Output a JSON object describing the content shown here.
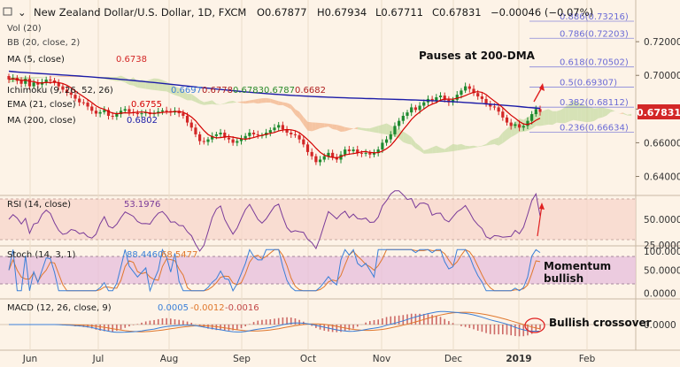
{
  "header": {
    "symbol": "New Zealand Dollar/U.S. Dollar, 1D, FXCM",
    "open": "O0.67877",
    "high": "H0.67934",
    "low": "L0.67711",
    "close": "C0.67831",
    "change": "−0.00046 (−0.07%)"
  },
  "indicators": {
    "vol": "Vol (20)",
    "bb": "BB (20, close, 2)",
    "ma5": "MA (5, close)",
    "ma5_value": "0.6738",
    "ichimoku": "Ichimoku (9, 26, 52, 26)",
    "ichimoku_values": [
      "0.6697",
      "0.6778",
      "0.6783",
      "0.6787",
      "0.6682"
    ],
    "ema21": "EMA (21, close)",
    "ema21_value": "0.6755",
    "ma200": "MA (200, close)",
    "ma200_value": "0.6802"
  },
  "fib_levels": [
    {
      "label": "0.886(0.73216)",
      "value": 0.73216
    },
    {
      "label": "0.786(0.72203)",
      "value": 0.72203
    },
    {
      "label": "0.618(0.70502)",
      "value": 0.70502
    },
    {
      "label": "0.5(0.69307)",
      "value": 0.69307
    },
    {
      "label": "0.382(0.68112)",
      "value": 0.68112
    },
    {
      "label": "0.236(0.66634)",
      "value": 0.66634
    }
  ],
  "annotations": {
    "main": "Pauses at 200-DMA",
    "stoch": "Momentum bullish",
    "stoch_line1": "Momentum",
    "stoch_line2": "bullish",
    "macd": "Bullish crossover"
  },
  "price_tag": "0.67831",
  "rsi": {
    "label": "RSI (14, close)",
    "value": "53.1976"
  },
  "stoch": {
    "label": "Stoch (14, 3, 1)",
    "k": "88.4460",
    "d": "68.5477"
  },
  "macd": {
    "label": "MACD (12, 26, close, 9)",
    "v1": "0.0005",
    "v2": "-0.0012",
    "v3": "-0.0016"
  },
  "colors": {
    "background": "#fdf3e7",
    "bull_candle": "#1e8a2f",
    "bear_candle": "#d32727",
    "ma200": "#1c1ca8",
    "ema21": "#d40000",
    "cloud_bear": "#f2b48b",
    "cloud_bull": "#c8dca6",
    "fib": "#6b6bd6",
    "rsi": "#7a3b99",
    "rsi_band": "#f7d3c9",
    "stoch_band": "#e6bddc",
    "stoch_k": "#3a7fd8",
    "stoch_d": "#e0782d",
    "macd_line": "#3a7fd8",
    "macd_signal": "#e0782d",
    "macd_hist": "#c24848",
    "price_tag": "#d32727",
    "arrow": "#e02020"
  },
  "chart_data": [
    {
      "type": "candlestick",
      "title": "New Zealand Dollar/U.S. Dollar, 1D, FXCM",
      "y_ticks": [
        0.72,
        0.7,
        0.68,
        0.66,
        0.64
      ],
      "y_tick_labels": [
        "0.72000",
        "0.70000",
        "0.68000",
        "0.66000",
        "0.64000"
      ],
      "ylim": [
        0.6345,
        0.7395
      ],
      "x_ticks": [
        "Jun",
        "Jul",
        "Aug",
        "Sep",
        "Oct",
        "Nov",
        "Dec",
        "2019",
        "Feb"
      ],
      "last_price": 0.67831,
      "series": [
        {
          "name": "Close",
          "values": [
            0.6976,
            0.6985,
            0.6968,
            0.695,
            0.698,
            0.6935,
            0.6958,
            0.6945,
            0.696,
            0.6975,
            0.697,
            0.6955,
            0.6935,
            0.6915,
            0.6898,
            0.6885,
            0.6862,
            0.684,
            0.6838,
            0.6815,
            0.679,
            0.6773,
            0.6782,
            0.6795,
            0.676,
            0.6755,
            0.677,
            0.679,
            0.68,
            0.6782,
            0.6776,
            0.677,
            0.6775,
            0.678,
            0.677,
            0.6778,
            0.6785,
            0.6792,
            0.6788,
            0.678,
            0.679,
            0.6775,
            0.676,
            0.672,
            0.669,
            0.665,
            0.661,
            0.6605,
            0.662,
            0.664,
            0.665,
            0.666,
            0.663,
            0.662,
            0.66,
            0.661,
            0.6625,
            0.664,
            0.666,
            0.665,
            0.6645,
            0.6645,
            0.666,
            0.6675,
            0.669,
            0.6705,
            0.668,
            0.666,
            0.665,
            0.6645,
            0.662,
            0.659,
            0.6545,
            0.652,
            0.6485,
            0.65,
            0.652,
            0.654,
            0.6515,
            0.65,
            0.653,
            0.656,
            0.655,
            0.656,
            0.654,
            0.6535,
            0.654,
            0.653,
            0.654,
            0.656,
            0.66,
            0.662,
            0.665,
            0.67,
            0.673,
            0.676,
            0.678,
            0.681,
            0.6795,
            0.682,
            0.684,
            0.686,
            0.685,
            0.687,
            0.688,
            0.6855,
            0.684,
            0.6855,
            0.6885,
            0.691,
            0.6935,
            0.692,
            0.6895,
            0.6875,
            0.686,
            0.683,
            0.6815,
            0.681,
            0.6785,
            0.675,
            0.672,
            0.67,
            0.671,
            0.669,
            0.67,
            0.673,
            0.677,
            0.68,
            0.6783
          ]
        }
      ]
    },
    {
      "type": "line",
      "title": "RSI (14, close)",
      "y_ticks": [
        50,
        25
      ],
      "y_tick_labels": [
        "50.0000",
        "25.0000"
      ],
      "bands": [
        30,
        70
      ],
      "last_value": 53.1976
    },
    {
      "type": "line",
      "title": "Stoch (14, 3, 1)",
      "y_ticks": [
        100,
        50,
        0
      ],
      "y_tick_labels": [
        "100.0000",
        "50.0000",
        "0.0000"
      ],
      "bands": [
        20,
        80
      ],
      "series": [
        {
          "name": "%K",
          "last_value": 88.446
        },
        {
          "name": "%D",
          "last_value": 68.5477
        }
      ]
    },
    {
      "type": "line",
      "title": "MACD (12, 26, close, 9)",
      "y_ticks": [
        0
      ],
      "y_tick_labels": [
        "0.0000"
      ],
      "values_shown": [
        0.0005,
        -0.0012,
        -0.0016
      ]
    }
  ]
}
